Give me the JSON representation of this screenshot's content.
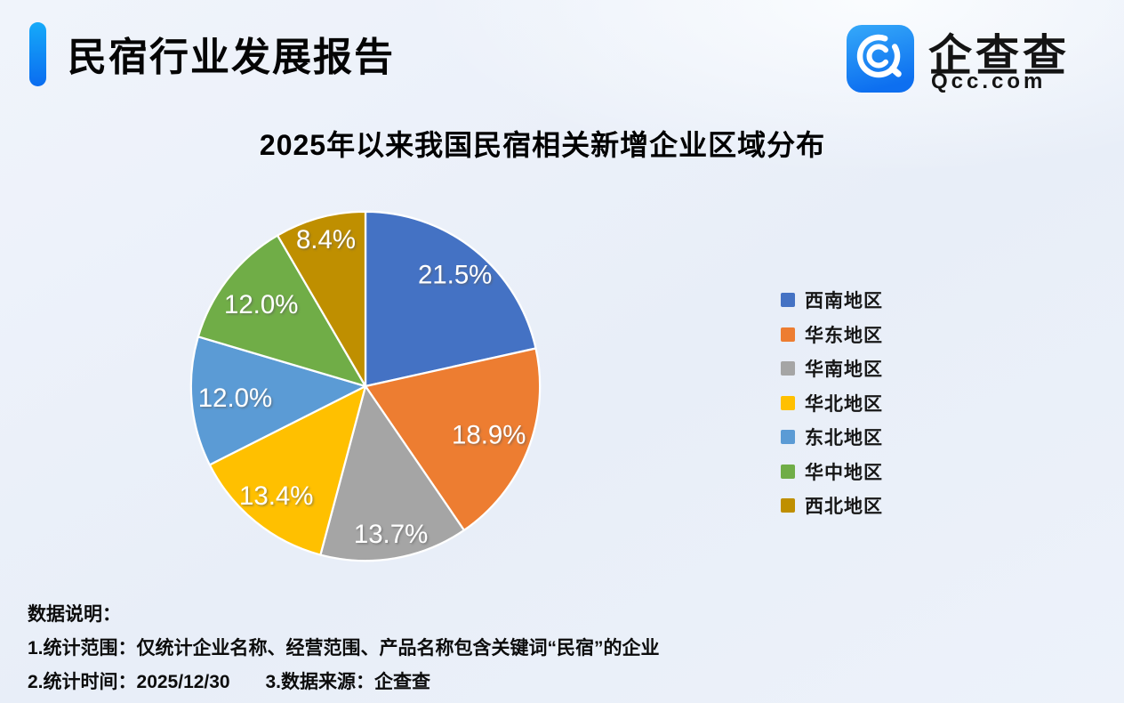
{
  "header": {
    "title": "民宿行业发展报告",
    "accent_color": "#0a84f5",
    "logo": {
      "icon": "qcc-magnifier-q-icon",
      "icon_gradient": [
        "#35a9f9",
        "#0d6ff0"
      ],
      "brand": "企查查",
      "domain": "Qcc.com"
    }
  },
  "chart_data": {
    "type": "pie",
    "title": "2025年以来我国民宿相关新增企业区域分布",
    "legend_position": "right",
    "start_angle": "12-oclock",
    "direction": "clockwise",
    "labels": "percent-inside-white",
    "label_color": "#ffffff",
    "slice_border_color": "#ffffff",
    "slices": [
      {
        "label": "西南地区",
        "value": 21.5,
        "display": "21.5%",
        "color": "#4472C4"
      },
      {
        "label": "华东地区",
        "value": 18.9,
        "display": "18.9%",
        "color": "#ED7D31"
      },
      {
        "label": "华南地区",
        "value": 13.7,
        "display": "13.7%",
        "color": "#A5A5A5"
      },
      {
        "label": "华北地区",
        "value": 13.4,
        "display": "13.4%",
        "color": "#FFC000"
      },
      {
        "label": "东北地区",
        "value": 12.0,
        "display": "12.0%",
        "color": "#5B9BD5"
      },
      {
        "label": "华中地区",
        "value": 12.0,
        "display": "12.0%",
        "color": "#70AD47"
      },
      {
        "label": "西北地区",
        "value": 8.4,
        "display": "8.4%",
        "color": "#BF8F00"
      }
    ]
  },
  "notes": {
    "heading": "数据说明：",
    "line1": "1.统计范围：仅统计企业名称、经营范围、产品名称包含关键词“民宿”的企业",
    "line2_part1": "2.统计时间：2025/12/30",
    "line2_part2": "3.数据来源：企查查"
  }
}
